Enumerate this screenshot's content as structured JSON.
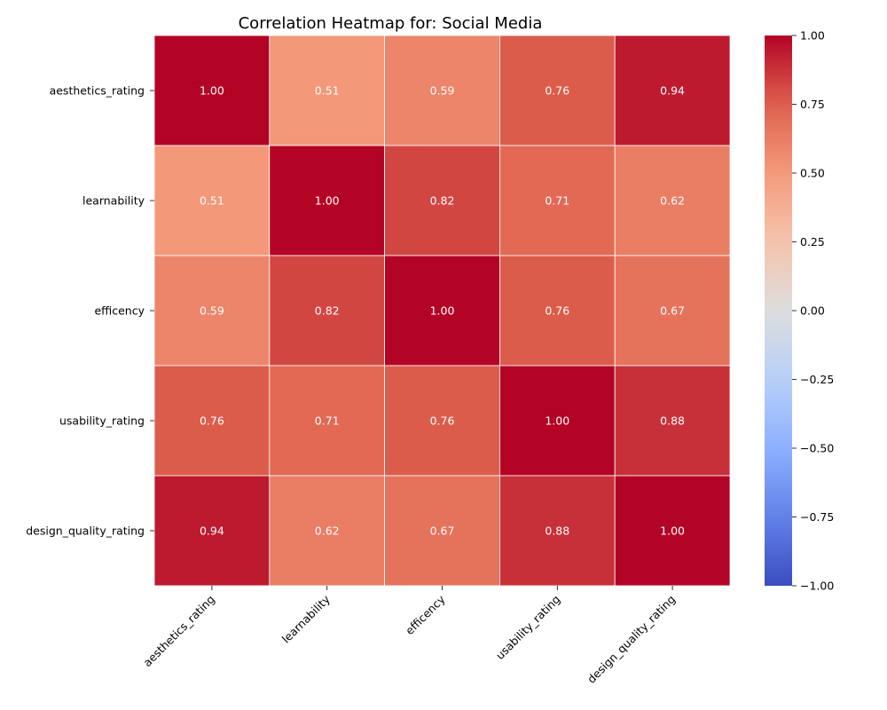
{
  "chart_data": {
    "type": "heatmap",
    "title": "Correlation Heatmap for: Social Media",
    "xlabel": "",
    "ylabel": "",
    "rows": [
      "aesthetics_rating",
      "learnability",
      "efficency",
      "usability_rating",
      "design_quality_rating"
    ],
    "columns": [
      "aesthetics_rating",
      "learnability",
      "efficency",
      "usability_rating",
      "design_quality_rating"
    ],
    "values": [
      [
        1.0,
        0.51,
        0.59,
        0.76,
        0.94
      ],
      [
        0.51,
        1.0,
        0.82,
        0.71,
        0.62
      ],
      [
        0.59,
        0.82,
        1.0,
        0.76,
        0.67
      ],
      [
        0.76,
        0.71,
        0.76,
        1.0,
        0.88
      ],
      [
        0.94,
        0.62,
        0.67,
        0.88,
        1.0
      ]
    ],
    "value_labels": [
      [
        "1.00",
        "0.51",
        "0.59",
        "0.76",
        "0.94"
      ],
      [
        "0.51",
        "1.00",
        "0.82",
        "0.71",
        "0.62"
      ],
      [
        "0.59",
        "0.82",
        "1.00",
        "0.76",
        "0.67"
      ],
      [
        "0.76",
        "0.71",
        "0.76",
        "1.00",
        "0.88"
      ],
      [
        "0.94",
        "0.62",
        "0.67",
        "0.88",
        "1.00"
      ]
    ],
    "colorbar": {
      "colormap": "coolwarm",
      "vmin": -1.0,
      "vmax": 1.0,
      "ticks": [
        1.0,
        0.75,
        0.5,
        0.25,
        0.0,
        -0.25,
        -0.5,
        -0.75,
        -1.0
      ],
      "tick_labels": [
        "1.00",
        "0.75",
        "0.50",
        "0.25",
        "0.00",
        "−0.25",
        "−0.50",
        "−0.75",
        "−1.00"
      ]
    },
    "gridlines": true,
    "grid_color": "#ffffff"
  }
}
